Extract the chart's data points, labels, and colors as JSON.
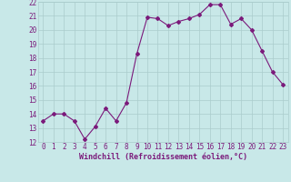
{
  "x": [
    0,
    1,
    2,
    3,
    4,
    5,
    6,
    7,
    8,
    9,
    10,
    11,
    12,
    13,
    14,
    15,
    16,
    17,
    18,
    19,
    20,
    21,
    22,
    23
  ],
  "y": [
    13.5,
    14.0,
    14.0,
    13.5,
    12.2,
    13.1,
    14.4,
    13.5,
    14.8,
    18.3,
    20.9,
    20.8,
    20.3,
    20.6,
    20.8,
    21.1,
    21.8,
    21.8,
    20.4,
    20.8,
    20.0,
    18.5,
    17.0,
    16.1
  ],
  "line_color": "#7b1a7b",
  "marker": "D",
  "marker_size": 2,
  "bg_color": "#c8e8e8",
  "grid_color": "#aacccc",
  "xlabel": "Windchill (Refroidissement éolien,°C)",
  "tick_color": "#7b1a7b",
  "ylim": [
    12,
    22
  ],
  "xlim": [
    -0.5,
    23.5
  ],
  "yticks": [
    12,
    13,
    14,
    15,
    16,
    17,
    18,
    19,
    20,
    21,
    22
  ],
  "xticks": [
    0,
    1,
    2,
    3,
    4,
    5,
    6,
    7,
    8,
    9,
    10,
    11,
    12,
    13,
    14,
    15,
    16,
    17,
    18,
    19,
    20,
    21,
    22,
    23
  ],
  "tick_fontsize": 5.5,
  "xlabel_fontsize": 6.0
}
